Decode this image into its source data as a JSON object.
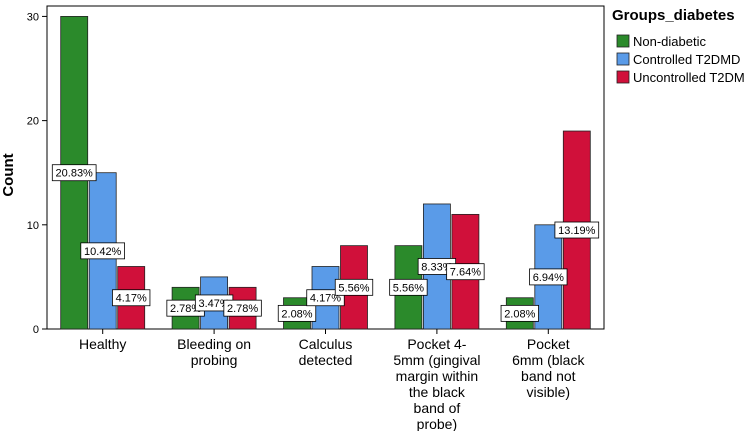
{
  "chart_data": {
    "type": "bar",
    "ylabel": "Count",
    "ylim": [
      0,
      31
    ],
    "yticks": [
      0,
      10,
      20,
      30
    ],
    "categories": [
      "Healthy",
      "Bleeding on probing",
      "Calculus detected",
      "Pocket 4-5mm (gingival margin within the black band of probe)",
      "Pocket 6mm (black band not visible)"
    ],
    "category_lines": [
      [
        "Healthy"
      ],
      [
        "Bleeding on",
        "probing"
      ],
      [
        "Calculus",
        "detected"
      ],
      [
        "Pocket 4-",
        "5mm (gingival",
        "margin within",
        "the black",
        "band of",
        "probe)"
      ],
      [
        "Pocket",
        "6mm (black",
        "band not",
        "visible)"
      ]
    ],
    "legend": {
      "title": "Groups_diabetes",
      "position": "top-right"
    },
    "series": [
      {
        "name": "Non-diabetic",
        "color": "#2b8a2b",
        "values": [
          30,
          4,
          3,
          8,
          3
        ],
        "labels": [
          "20.83%",
          "2.78%",
          "2.08%",
          "5.56%",
          "2.08%"
        ]
      },
      {
        "name": "Controlled T2DMD",
        "color": "#5a9be8",
        "values": [
          15,
          5,
          6,
          12,
          10
        ],
        "labels": [
          "10.42%",
          "3.47%",
          "4.17%",
          "8.33%",
          "6.94%"
        ]
      },
      {
        "name": "Uncontrolled T2DM",
        "color": "#d0103a",
        "values": [
          6,
          4,
          8,
          11,
          19
        ],
        "labels": [
          "4.17%",
          "2.78%",
          "5.56%",
          "7.64%",
          "13.19%"
        ]
      }
    ],
    "grid": false
  }
}
